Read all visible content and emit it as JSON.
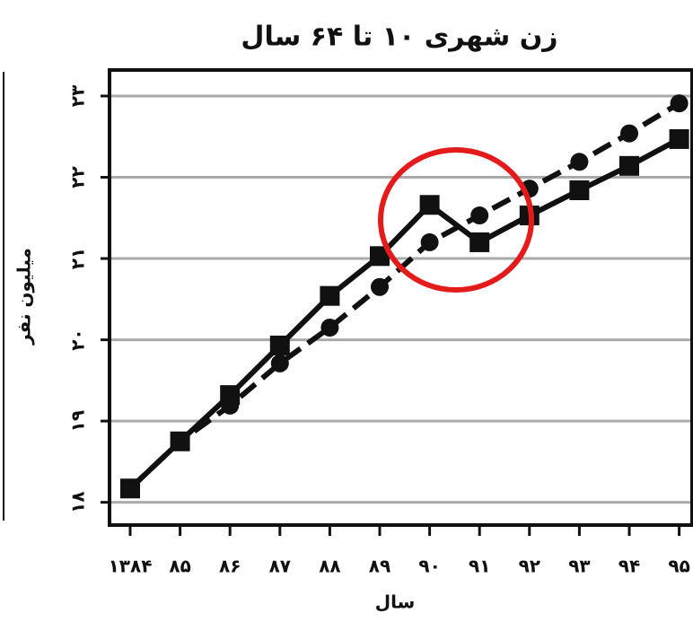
{
  "chart_data": {
    "type": "line",
    "title": "زن شهری ۱۰ تا ۶۴ سال",
    "y_label": "میلیون نفر",
    "x_label": "سال",
    "categories": [
      "۱۳۸۴",
      "۸۵",
      "۸۶",
      "۸۷",
      "۸۸",
      "۸۹",
      "۹۰",
      "۹۱",
      "۹۲",
      "۹۳",
      "۹۴",
      "۹۵"
    ],
    "series": [
      {
        "color": "#111111",
        "style": "solid",
        "marker": "square",
        "values": [
          18.17,
          18.75,
          19.32,
          19.93,
          20.54,
          21.03,
          21.66,
          21.2,
          21.53,
          21.84,
          22.14,
          22.47
        ]
      },
      {
        "color": "#111111",
        "style": "dashed",
        "marker": "circle",
        "values": [
          18.17,
          18.75,
          19.19,
          19.71,
          20.15,
          20.65,
          21.2,
          21.53,
          21.86,
          22.19,
          22.54,
          22.91
        ]
      }
    ],
    "ylim": [
      17.72,
      23.32
    ],
    "yticks": [
      {
        "value": 18,
        "label": "۱۸"
      },
      {
        "value": 19,
        "label": "۱۹"
      },
      {
        "value": 20,
        "label": "۲۰"
      },
      {
        "value": 21,
        "label": "۲۱"
      },
      {
        "value": 22,
        "label": "۲۲"
      },
      {
        "value": 23,
        "label": "۲۳"
      }
    ],
    "grid": true
  }
}
